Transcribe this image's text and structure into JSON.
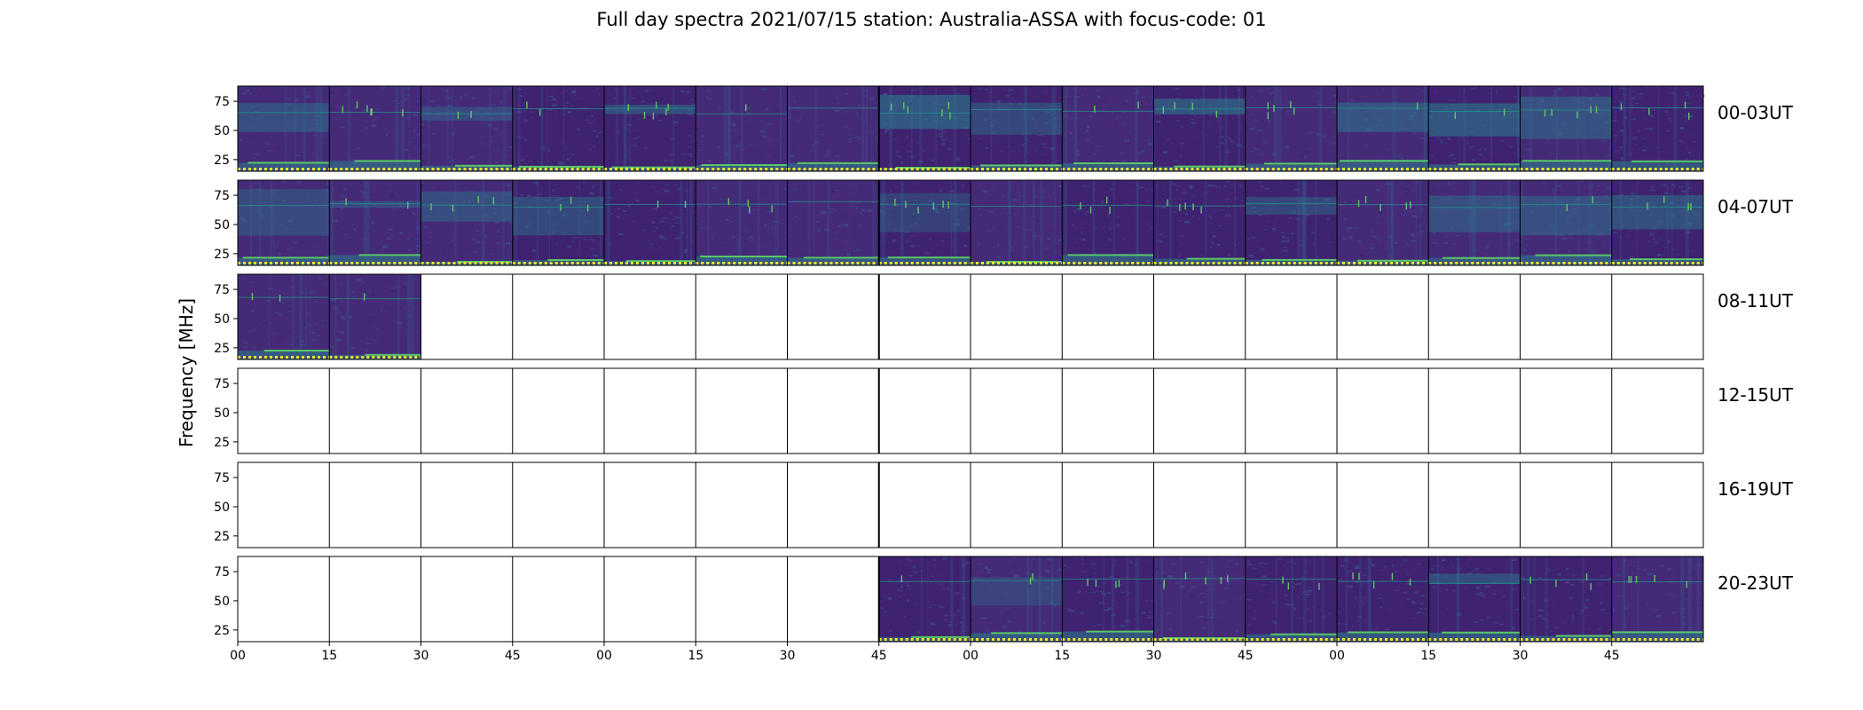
{
  "title": "Full day spectra 2021/07/15 station: Australia-ASSA with focus-code: 01",
  "chart_data": {
    "type": "heatmap",
    "title": "Full day spectra 2021/07/15 station: Australia-ASSA with focus-code: 01",
    "ylabel": "Frequency [MHz]",
    "xlabel": "",
    "yticks": [
      "25",
      "50",
      "75"
    ],
    "ylim": [
      15,
      88
    ],
    "xticks": [
      "00",
      "15",
      "30",
      "45",
      "00",
      "15",
      "30",
      "45",
      "00",
      "15",
      "30",
      "45",
      "00",
      "15",
      "30",
      "45"
    ],
    "colormap": "viridis",
    "colors": {
      "background": "#3f2270",
      "background_alt": "#452a78",
      "mid": "#2a7f8e",
      "high": "#58c765",
      "peak": "#fde725"
    },
    "rows": [
      {
        "label": "00-03UT",
        "panels": [
          1,
          1,
          1,
          1,
          1,
          1,
          1,
          1,
          1,
          1,
          1,
          1,
          1,
          1,
          1,
          1
        ]
      },
      {
        "label": "04-07UT",
        "panels": [
          1,
          1,
          1,
          1,
          1,
          1,
          1,
          1,
          1,
          1,
          1,
          1,
          1,
          1,
          1,
          1
        ]
      },
      {
        "label": "08-11UT",
        "panels": [
          1,
          1,
          0,
          0,
          0,
          0,
          0,
          0,
          0,
          0,
          0,
          0,
          0,
          0,
          0,
          0
        ]
      },
      {
        "label": "12-15UT",
        "panels": [
          0,
          0,
          0,
          0,
          0,
          0,
          0,
          0,
          0,
          0,
          0,
          0,
          0,
          0,
          0,
          0
        ]
      },
      {
        "label": "16-19UT",
        "panels": [
          0,
          0,
          0,
          0,
          0,
          0,
          0,
          0,
          0,
          0,
          0,
          0,
          0,
          0,
          0,
          0
        ]
      },
      {
        "label": "20-23UT",
        "panels": [
          0,
          0,
          0,
          0,
          0,
          0,
          0,
          1,
          1,
          1,
          1,
          1,
          1,
          1,
          1,
          1
        ]
      }
    ]
  }
}
